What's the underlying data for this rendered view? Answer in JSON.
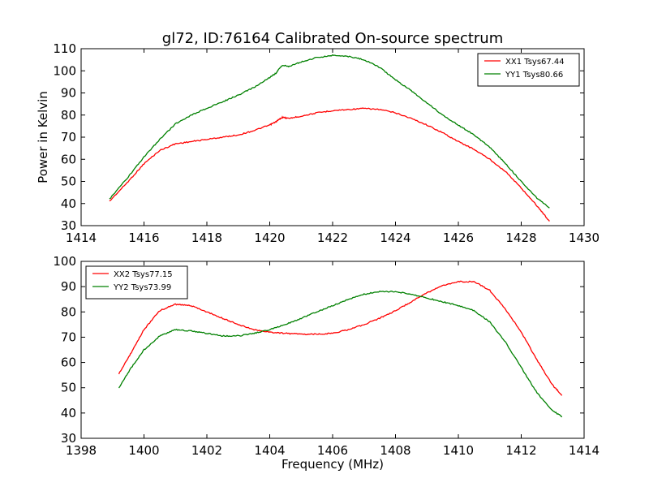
{
  "figure": {
    "title": "gl72, ID:76164 Calibrated On-source spectrum"
  },
  "chart_data": [
    {
      "type": "line",
      "title": "gl72, ID:76164 Calibrated On-source spectrum",
      "xlabel": "",
      "ylabel": "Power in Kelvin",
      "xlim": [
        1414,
        1430
      ],
      "ylim": [
        30,
        110
      ],
      "xticks": [
        1414,
        1416,
        1418,
        1420,
        1422,
        1424,
        1426,
        1428,
        1430
      ],
      "yticks": [
        30,
        40,
        50,
        60,
        70,
        80,
        90,
        100,
        110
      ],
      "grid": false,
      "legend": "top-right",
      "series": [
        {
          "name": "XX1 Tsys67.44",
          "color": "#ff0000",
          "x": [
            1414.9,
            1415.5,
            1416,
            1416.5,
            1417,
            1417.5,
            1418,
            1418.5,
            1419,
            1419.5,
            1420,
            1420.2,
            1420.4,
            1420.6,
            1421,
            1421.5,
            1422,
            1422.5,
            1423,
            1423.5,
            1424,
            1424.5,
            1425,
            1425.5,
            1426,
            1426.5,
            1427,
            1427.5,
            1428,
            1428.5,
            1428.9
          ],
          "values": [
            41,
            50,
            58,
            64,
            67,
            68,
            69,
            70,
            71,
            73,
            75.5,
            77,
            79,
            78.5,
            79.5,
            81,
            82,
            82.5,
            83,
            82.5,
            81,
            78.5,
            75.5,
            72,
            68,
            64.5,
            60,
            54.5,
            47,
            39,
            32
          ]
        },
        {
          "name": "YY1 Tsys80.66",
          "color": "#008000",
          "x": [
            1414.9,
            1415.5,
            1416,
            1416.5,
            1417,
            1417.5,
            1418,
            1418.5,
            1419,
            1419.5,
            1420,
            1420.2,
            1420.4,
            1420.6,
            1421,
            1421.5,
            1422,
            1422.5,
            1423,
            1423.5,
            1424,
            1424.5,
            1425,
            1425.5,
            1426,
            1426.5,
            1427,
            1427.5,
            1428,
            1428.5,
            1428.9
          ],
          "values": [
            42,
            52,
            61,
            69,
            76,
            80,
            83,
            86,
            89,
            92.5,
            97,
            99,
            102.5,
            102,
            104,
            106,
            107,
            106.5,
            105,
            101.5,
            96,
            91,
            85.5,
            80,
            75.5,
            71,
            65.5,
            58,
            50,
            42.5,
            38
          ]
        }
      ]
    },
    {
      "type": "line",
      "title": "",
      "xlabel": "Frequency (MHz)",
      "ylabel": "",
      "xlim": [
        1398,
        1414
      ],
      "ylim": [
        30,
        100
      ],
      "xticks": [
        1398,
        1400,
        1402,
        1404,
        1406,
        1408,
        1410,
        1412,
        1414
      ],
      "yticks": [
        30,
        40,
        50,
        60,
        70,
        80,
        90,
        100
      ],
      "grid": false,
      "legend": "top-left",
      "series": [
        {
          "name": "XX2 Tsys77.15",
          "color": "#ff0000",
          "x": [
            1399.2,
            1399.6,
            1400,
            1400.5,
            1401,
            1401.5,
            1402,
            1402.5,
            1403,
            1403.5,
            1404,
            1404.5,
            1405,
            1405.5,
            1406,
            1406.5,
            1407,
            1407.5,
            1408,
            1408.5,
            1409,
            1409.5,
            1410,
            1410.5,
            1411,
            1411.5,
            1412,
            1412.5,
            1413,
            1413.3
          ],
          "values": [
            55.5,
            64,
            73,
            80.5,
            83,
            82.5,
            80,
            77.5,
            75,
            73,
            72,
            71.5,
            71.2,
            71.2,
            71.5,
            73,
            75,
            77.5,
            80.5,
            84,
            87.5,
            90.5,
            92,
            92,
            88.5,
            81,
            72,
            61,
            51,
            47
          ]
        },
        {
          "name": "YY2 Tsys73.99",
          "color": "#008000",
          "x": [
            1399.2,
            1399.6,
            1400,
            1400.5,
            1401,
            1401.5,
            1402,
            1402.5,
            1403,
            1403.5,
            1404,
            1404.5,
            1405,
            1405.5,
            1406,
            1406.5,
            1407,
            1407.5,
            1408,
            1408.5,
            1409,
            1409.5,
            1410,
            1410.5,
            1411,
            1411.5,
            1412,
            1412.5,
            1413,
            1413.3
          ],
          "values": [
            50,
            58,
            65,
            70.5,
            73,
            72.5,
            71.5,
            70.5,
            70.5,
            71.5,
            73,
            75,
            77.5,
            80,
            82.5,
            85,
            87,
            88,
            88,
            87,
            85.5,
            84,
            82.5,
            80.5,
            76,
            68,
            58,
            48,
            41,
            38.5
          ]
        }
      ]
    }
  ]
}
